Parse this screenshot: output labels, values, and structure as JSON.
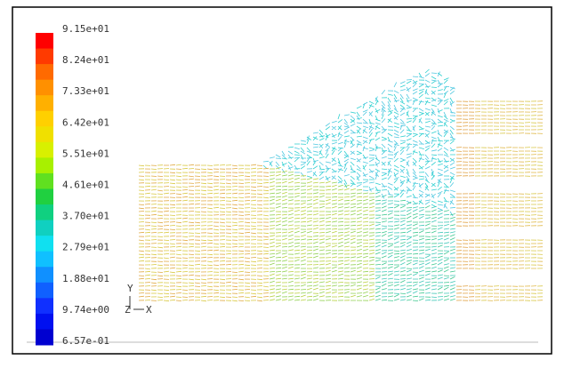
{
  "colorbar": {
    "labels": [
      "9.15e+01",
      "8.24e+01",
      "7.33e+01",
      "6.42e+01",
      "5.51e+01",
      "4.61e+01",
      "3.70e+01",
      "2.79e+01",
      "1.88e+01",
      "9.74e+00",
      "6.57e-01"
    ]
  },
  "axes": {
    "y": "Y",
    "z": "Z",
    "x": "X"
  }
}
